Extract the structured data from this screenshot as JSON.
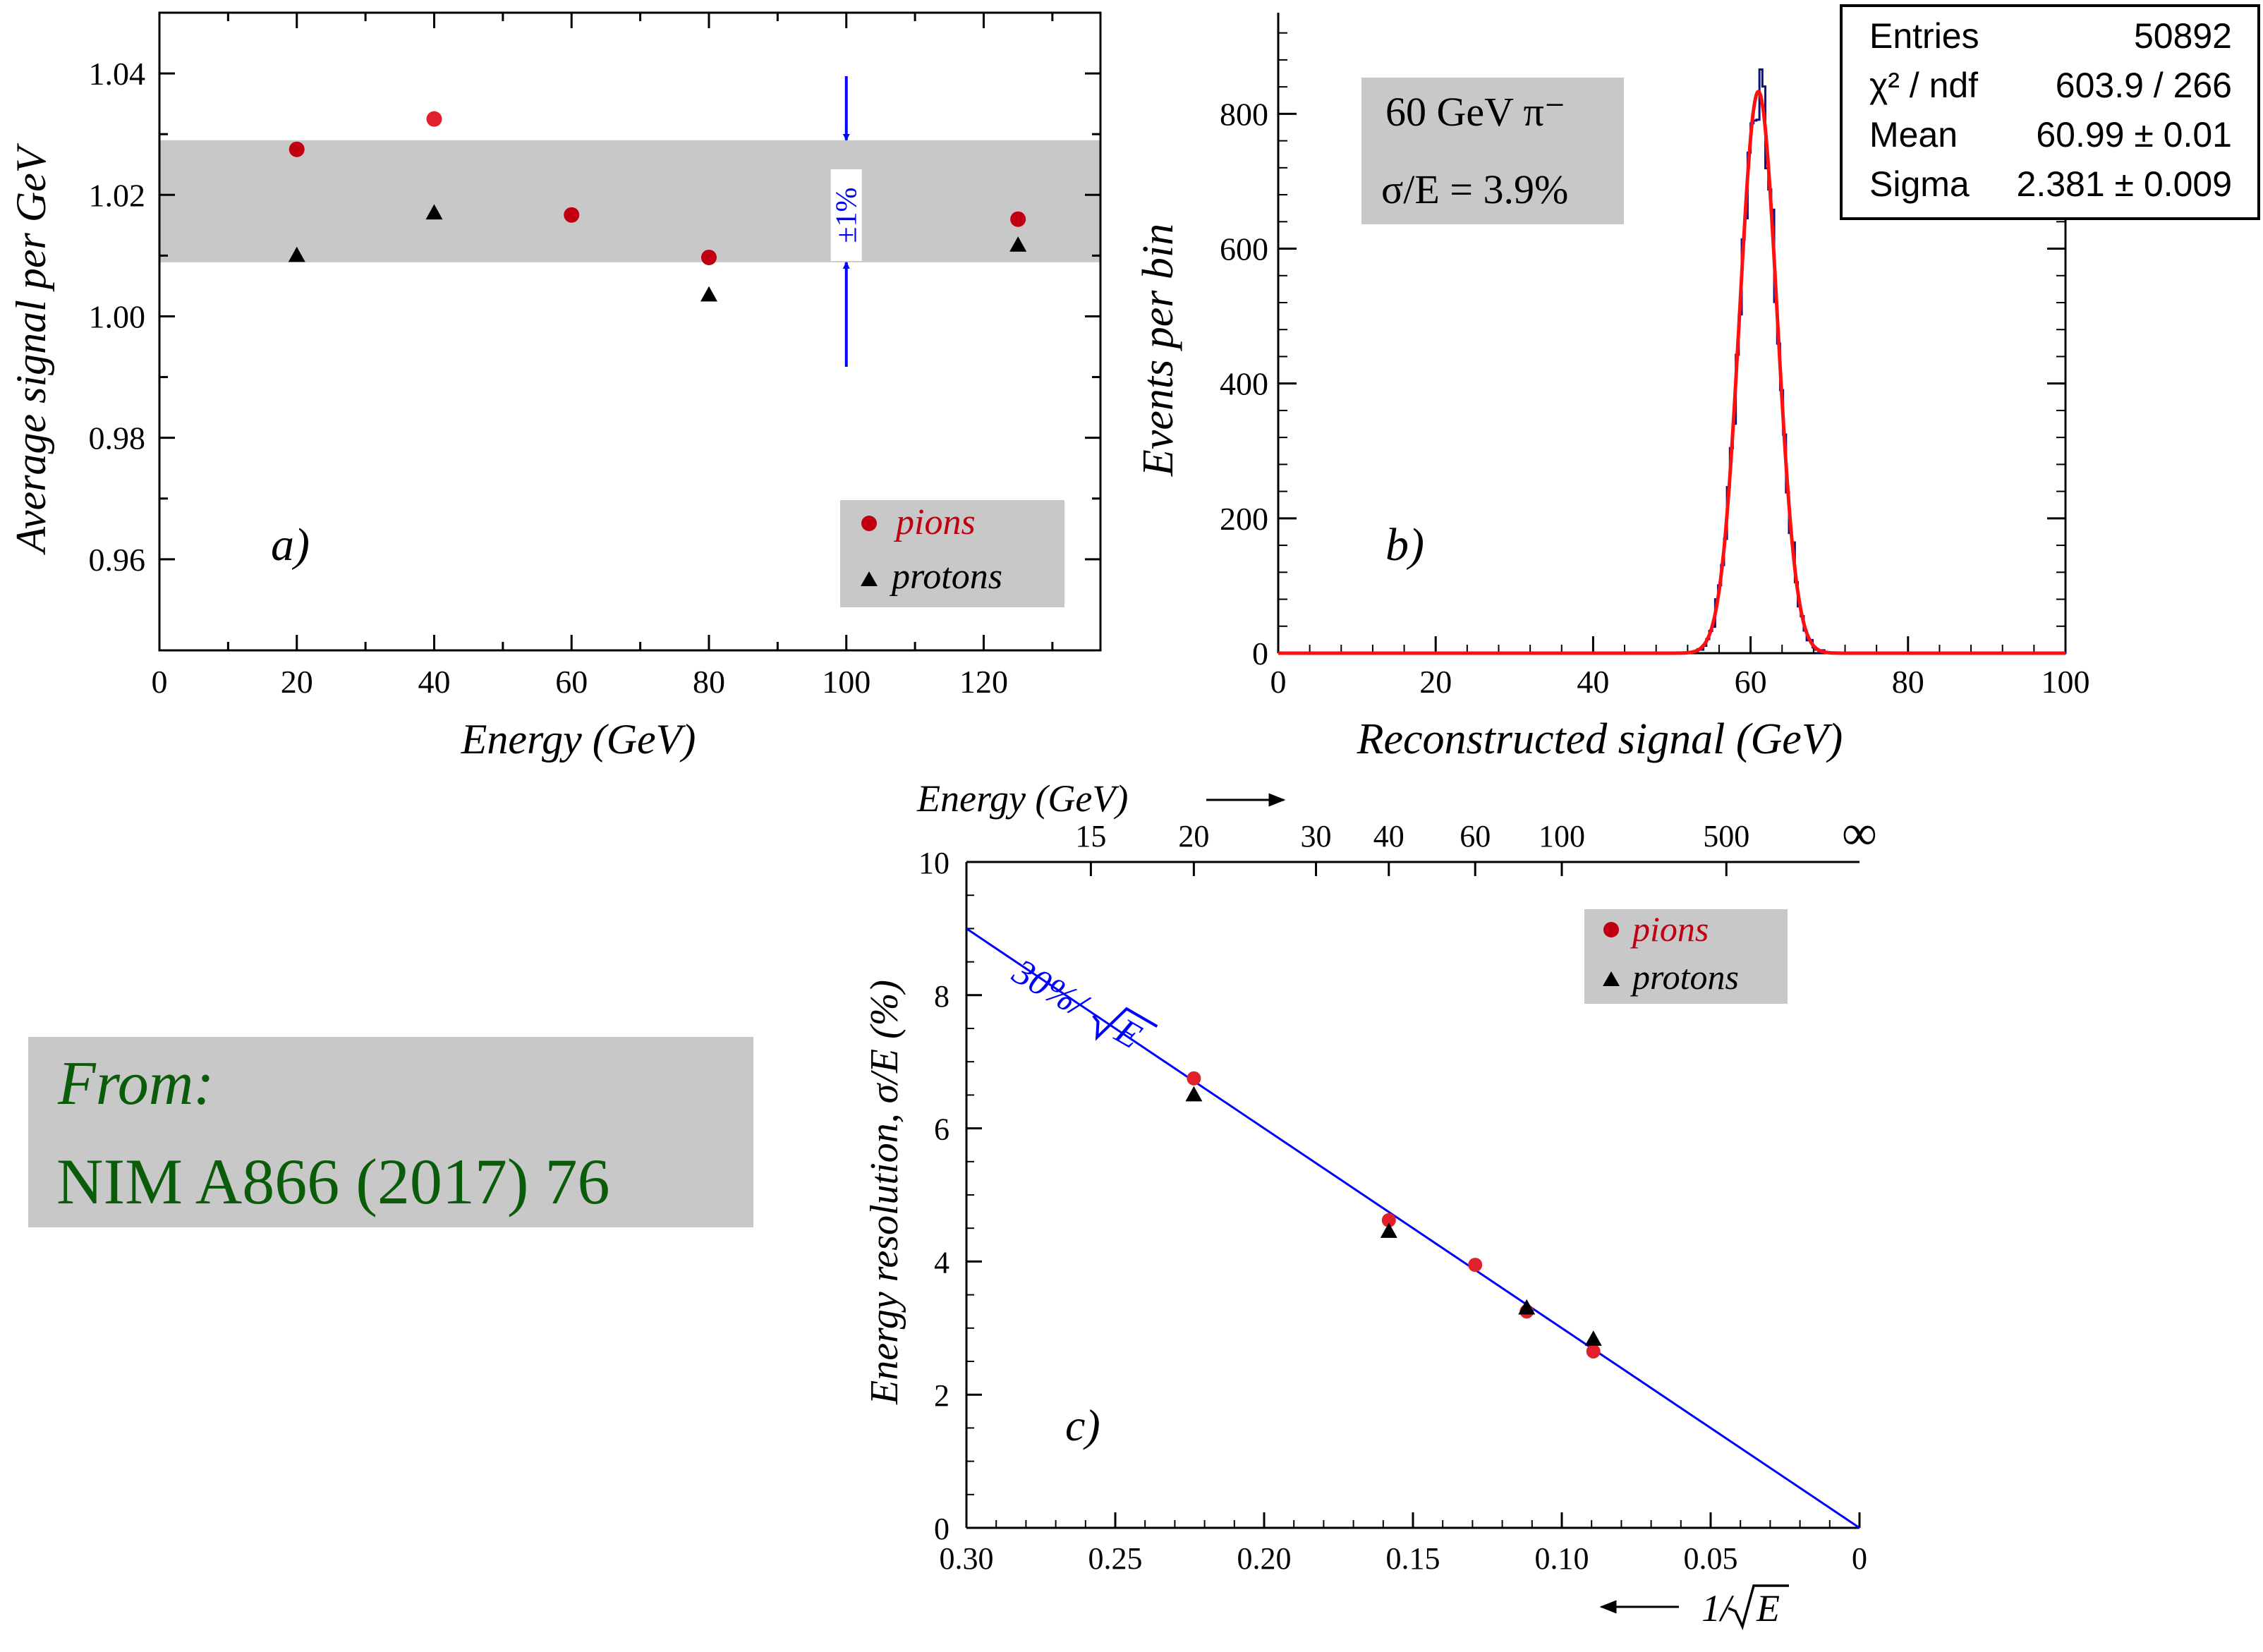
{
  "colors": {
    "pion": "#c00010",
    "pion_fill_alt": "#e0202a",
    "proton": "#000000",
    "band": "#c8c8c8",
    "blue": "#0000ff",
    "fit_red": "#ff1010",
    "hist_blue": "#101080",
    "citation_green": "#0a5c0a"
  },
  "citation": {
    "line1": "From:",
    "line2": "NIM A866 (2017) 76"
  },
  "chart_data": [
    {
      "id": "a",
      "type": "scatter",
      "panel_label": "a)",
      "xlabel": "Energy (GeV)",
      "ylabel": "Average signal per GeV",
      "xlim": [
        0,
        137
      ],
      "ylim": [
        0.945,
        1.05
      ],
      "x_ticks": [
        0,
        20,
        40,
        60,
        80,
        100,
        120
      ],
      "x_tick_labels": [
        "0",
        "20",
        "40",
        "60",
        "80",
        "100",
        "120"
      ],
      "y_ticks": [
        0.96,
        0.98,
        1.0,
        1.02,
        1.04
      ],
      "y_tick_labels": [
        "0.96",
        "0.98",
        "1.00",
        "1.02",
        "1.04"
      ],
      "band": {
        "y0": 1.0089,
        "y1": 1.029
      },
      "band_annotation": "±1%",
      "series": [
        {
          "name": "pions",
          "marker": "circle",
          "x": [
            20,
            40,
            60,
            80,
            125
          ],
          "y": [
            1.0275,
            1.0325,
            1.0167,
            1.0097,
            1.016
          ]
        },
        {
          "name": "protons",
          "marker": "triangle",
          "x": [
            20,
            40,
            80,
            125
          ],
          "y": [
            1.01,
            1.017,
            1.0035,
            1.0117
          ]
        }
      ],
      "legend": [
        "pions",
        "protons"
      ],
      "legend_position": "bottom-right"
    },
    {
      "id": "b",
      "type": "histogram",
      "panel_label": "b)",
      "xlabel": "Reconstructed signal (GeV)",
      "ylabel": "Events per bin",
      "xlim": [
        0,
        100
      ],
      "ylim": [
        0,
        950
      ],
      "x_ticks": [
        0,
        20,
        40,
        60,
        80,
        100
      ],
      "x_tick_labels": [
        "0",
        "20",
        "40",
        "60",
        "80",
        "100"
      ],
      "y_ticks": [
        0,
        200,
        400,
        600,
        800
      ],
      "y_tick_labels": [
        "0",
        "200",
        "400",
        "600",
        "800"
      ],
      "beam_label": "60 GeV π⁻",
      "resolution_label": "σ/E = 3.9%",
      "gauss_fit": {
        "amplitude": 833,
        "mean": 60.99,
        "sigma": 2.381
      },
      "stats": [
        {
          "key": "Entries",
          "value": "50892"
        },
        {
          "key": "χ² / ndf",
          "value": "603.9 / 266"
        },
        {
          "key": "Mean",
          "value": "60.99 ± 0.01"
        },
        {
          "key": "Sigma",
          "value": "2.381 ± 0.009"
        }
      ],
      "legend_position": "top-right"
    },
    {
      "id": "c",
      "type": "scatter",
      "panel_label": "c)",
      "xlabel": "1/√E",
      "xlabel_prefix": "1/",
      "xlabel_radicand": "E",
      "top_axis_label": "Energy (GeV)",
      "ylabel": "Energy resolution, σ/E (%)",
      "xlim": [
        0.3,
        0.0
      ],
      "ylim": [
        0,
        10
      ],
      "x_ticks": [
        0.3,
        0.25,
        0.2,
        0.15,
        0.1,
        0.05,
        0
      ],
      "x_tick_labels": [
        "0.30",
        "0.25",
        "0.20",
        "0.15",
        "0.10",
        "0.05",
        "0"
      ],
      "y_ticks": [
        0,
        2,
        4,
        6,
        8,
        10
      ],
      "y_tick_labels": [
        "0",
        "2",
        "4",
        "6",
        "8",
        "10"
      ],
      "top_ticks_energy": [
        15,
        20,
        30,
        40,
        60,
        100,
        500
      ],
      "top_tick_labels": [
        "15",
        "20",
        "30",
        "40",
        "60",
        "100",
        "500"
      ],
      "top_infinity_label": "∞",
      "fit_line": {
        "label": "30%/√E",
        "label_prefix": "30%/",
        "label_radicand": "E",
        "slope_percent": 30
      },
      "series": [
        {
          "name": "pions",
          "marker": "circle",
          "x": [
            0.2236,
            0.1581,
            0.1291,
            0.1118,
            0.0894
          ],
          "y": [
            6.75,
            4.62,
            3.95,
            3.25,
            2.65
          ]
        },
        {
          "name": "protons",
          "marker": "triangle",
          "x": [
            0.2236,
            0.1581,
            0.1118,
            0.0894
          ],
          "y": [
            6.5,
            4.45,
            3.3,
            2.83
          ]
        }
      ],
      "legend": [
        "pions",
        "protons"
      ],
      "legend_position": "top-right"
    }
  ]
}
